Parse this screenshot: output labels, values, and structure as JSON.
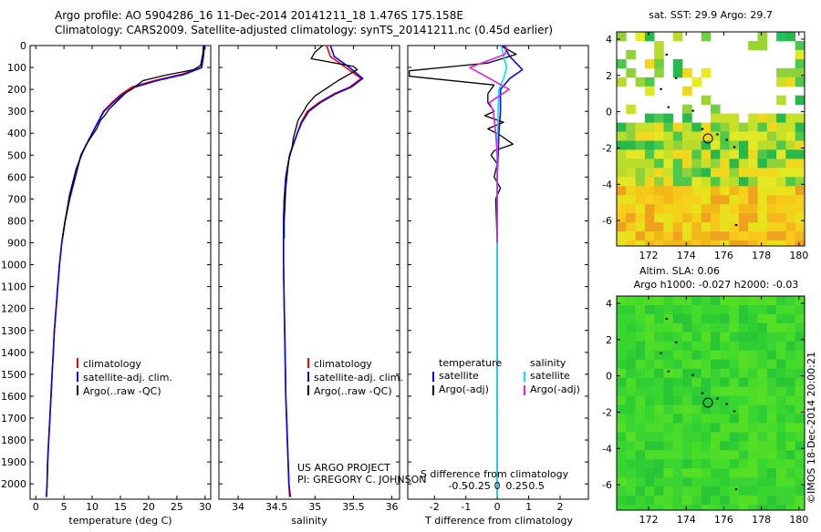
{
  "header": {
    "line1": "Argo profile: AO 5904286_16 11-Dec-2014 20141211_18 1.476S 175.158E",
    "line2": "Climatology: CARS2009. Satellite-adjusted climatology: synTS_20141211.nc (0.45d earlier)"
  },
  "colors": {
    "clim": "#ff0000",
    "sat": "#0000ff",
    "argo": "#000000",
    "sat_s": "#00e5e5",
    "argo_s": "#e020e0"
  },
  "chart_data": [
    {
      "type": "line",
      "id": "temperature",
      "xlabel": "temperature (deg C)",
      "xlim": [
        -1,
        31
      ],
      "xticks": [
        0,
        5,
        10,
        15,
        20,
        25,
        30
      ],
      "ylim": [
        0,
        2070
      ],
      "yticks": [
        0,
        100,
        200,
        300,
        400,
        500,
        600,
        700,
        800,
        900,
        1000,
        1100,
        1200,
        1300,
        1400,
        1500,
        1600,
        1700,
        1800,
        1900,
        2000
      ],
      "legend": [
        "climatology",
        "satellite-adj. clim.",
        "Argo(..raw -QC)"
      ],
      "series": [
        {
          "name": "climatology",
          "color": "clim",
          "points": [
            [
              29.8,
              0
            ],
            [
              29.6,
              50
            ],
            [
              29.3,
              100
            ],
            [
              26,
              130
            ],
            [
              21,
              160
            ],
            [
              17,
              190
            ],
            [
              15,
              225
            ],
            [
              13.5,
              260
            ],
            [
              12,
              300
            ],
            [
              11,
              350
            ],
            [
              10,
              400
            ],
            [
              9,
              450
            ],
            [
              8,
              500
            ],
            [
              7,
              600
            ],
            [
              6,
              700
            ],
            [
              5.2,
              800
            ],
            [
              4.6,
              900
            ],
            [
              4.2,
              1000
            ],
            [
              3.9,
              1100
            ],
            [
              3.6,
              1200
            ],
            [
              3.3,
              1300
            ],
            [
              3.1,
              1400
            ],
            [
              2.9,
              1500
            ],
            [
              2.7,
              1600
            ],
            [
              2.5,
              1700
            ],
            [
              2.3,
              1800
            ],
            [
              2.1,
              1900
            ],
            [
              2,
              2000
            ],
            [
              1.9,
              2060
            ]
          ]
        },
        {
          "name": "satellite-adj. clim.",
          "color": "sat",
          "points": [
            [
              29.9,
              0
            ],
            [
              29.7,
              50
            ],
            [
              29.4,
              100
            ],
            [
              26.5,
              130
            ],
            [
              21.5,
              160
            ],
            [
              17.5,
              190
            ],
            [
              15.3,
              225
            ],
            [
              13.7,
              260
            ],
            [
              12.1,
              300
            ],
            [
              11,
              350
            ],
            [
              10,
              400
            ],
            [
              9,
              450
            ],
            [
              8,
              500
            ],
            [
              7,
              600
            ],
            [
              6,
              700
            ],
            [
              5.2,
              800
            ],
            [
              4.6,
              900
            ],
            [
              4.2,
              1000
            ],
            [
              3.9,
              1100
            ],
            [
              3.6,
              1200
            ],
            [
              3.3,
              1300
            ],
            [
              3.1,
              1400
            ],
            [
              2.9,
              1500
            ],
            [
              2.7,
              1600
            ],
            [
              2.5,
              1700
            ],
            [
              2.3,
              1800
            ],
            [
              2.1,
              1900
            ],
            [
              2,
              2000
            ],
            [
              1.9,
              2060
            ]
          ]
        },
        {
          "name": "Argo(..raw -QC)",
          "color": "argo",
          "points": [
            [
              29.7,
              0
            ],
            [
              29.6,
              40
            ],
            [
              29.2,
              90
            ],
            [
              28,
              110
            ],
            [
              23,
              135
            ],
            [
              19,
              160
            ],
            [
              18,
              180
            ],
            [
              17,
              200
            ],
            [
              16,
              215
            ],
            [
              15,
              240
            ],
            [
              14.2,
              260
            ],
            [
              13,
              290
            ],
            [
              12.2,
              320
            ],
            [
              11.5,
              340
            ],
            [
              10.8,
              380
            ],
            [
              10,
              410
            ],
            [
              9,
              450
            ],
            [
              8.3,
              490
            ],
            [
              7.8,
              520
            ],
            [
              7.2,
              560
            ],
            [
              6.6,
              620
            ],
            [
              6,
              680
            ],
            [
              5.6,
              740
            ],
            [
              5.2,
              800
            ],
            [
              4.7,
              880
            ]
          ]
        }
      ]
    },
    {
      "type": "line",
      "id": "salinity",
      "xlabel": "salinity",
      "xlim": [
        33.75,
        36.1
      ],
      "xticks": [
        34,
        34.5,
        35,
        35.5,
        36
      ],
      "ylim": [
        0,
        2070
      ],
      "legend": [
        "climatology",
        "satellite-adj. clim.",
        "Argo(..raw -QC)"
      ],
      "series": [
        {
          "name": "climatology",
          "color": "clim",
          "points": [
            [
              35.15,
              0
            ],
            [
              35.2,
              50
            ],
            [
              35.4,
              100
            ],
            [
              35.6,
              150
            ],
            [
              35.45,
              190
            ],
            [
              35.25,
              220
            ],
            [
              35.05,
              260
            ],
            [
              34.9,
              300
            ],
            [
              34.82,
              350
            ],
            [
              34.77,
              400
            ],
            [
              34.72,
              450
            ],
            [
              34.67,
              500
            ],
            [
              34.62,
              600
            ],
            [
              34.6,
              700
            ],
            [
              34.59,
              800
            ],
            [
              34.59,
              1000
            ],
            [
              34.6,
              1200
            ],
            [
              34.61,
              1400
            ],
            [
              34.62,
              1600
            ],
            [
              34.64,
              1800
            ],
            [
              34.66,
              2000
            ],
            [
              34.67,
              2060
            ]
          ]
        },
        {
          "name": "satellite-adj. clim.",
          "color": "sat",
          "points": [
            [
              35.2,
              0
            ],
            [
              35.25,
              50
            ],
            [
              35.45,
              100
            ],
            [
              35.62,
              150
            ],
            [
              35.47,
              190
            ],
            [
              35.27,
              220
            ],
            [
              35.07,
              260
            ],
            [
              34.92,
              300
            ],
            [
              34.83,
              350
            ],
            [
              34.77,
              400
            ],
            [
              34.72,
              450
            ],
            [
              34.67,
              500
            ],
            [
              34.62,
              600
            ],
            [
              34.6,
              700
            ],
            [
              34.59,
              800
            ],
            [
              34.59,
              1000
            ],
            [
              34.6,
              1200
            ],
            [
              34.61,
              1400
            ],
            [
              34.62,
              1600
            ],
            [
              34.64,
              1800
            ],
            [
              34.66,
              2000
            ],
            [
              34.68,
              2060
            ]
          ]
        },
        {
          "name": "Argo(..raw -QC)",
          "color": "argo",
          "points": [
            [
              35.1,
              0
            ],
            [
              35.0,
              30
            ],
            [
              34.95,
              60
            ],
            [
              35.5,
              95
            ],
            [
              35.55,
              110
            ],
            [
              35.45,
              130
            ],
            [
              35.3,
              160
            ],
            [
              35.15,
              195
            ],
            [
              35.0,
              230
            ],
            [
              34.9,
              270
            ],
            [
              34.85,
              300
            ],
            [
              34.78,
              340
            ],
            [
              34.75,
              380
            ],
            [
              34.72,
              420
            ],
            [
              34.7,
              470
            ],
            [
              34.66,
              520
            ],
            [
              34.64,
              580
            ],
            [
              34.62,
              650
            ],
            [
              34.61,
              720
            ],
            [
              34.6,
              800
            ],
            [
              34.6,
              880
            ]
          ]
        }
      ]
    },
    {
      "type": "line",
      "id": "difference",
      "xlabel": "T difference from climatology",
      "x2label": "S difference from climatology",
      "xlim": [
        -2.85,
        2.9
      ],
      "xticks": [
        -2,
        -1,
        0,
        1,
        2
      ],
      "x2ticks": [
        -0.5,
        -0.25,
        0,
        0.25,
        0.5
      ],
      "x2tick_labels": [
        "-0.5",
        "-0.25",
        "0",
        "0.25",
        "0.5"
      ],
      "s_scale": 2.5,
      "ylim": [
        0,
        2070
      ],
      "legend_left_title": "temperature",
      "legend_right_title": "salinity",
      "legend_left": [
        "satellite",
        "Argo(-adj)"
      ],
      "legend_right": [
        "satellite",
        "Argo(-adj)"
      ],
      "series": [
        {
          "name": "T satellite",
          "color": "sat",
          "points": [
            [
              0.2,
              0
            ],
            [
              0.4,
              50
            ],
            [
              0.8,
              110
            ],
            [
              0.4,
              150
            ],
            [
              0.1,
              200
            ],
            [
              0.1,
              300
            ],
            [
              0.05,
              400
            ],
            [
              0,
              600
            ],
            [
              0,
              2060
            ]
          ]
        },
        {
          "name": "T Argo(-adj)",
          "color": "argo",
          "points": [
            [
              0.1,
              0
            ],
            [
              0.6,
              40
            ],
            [
              -0.3,
              80
            ],
            [
              -2.8,
              115
            ],
            [
              -2.8,
              140
            ],
            [
              -0.1,
              180
            ],
            [
              -0.3,
              220
            ],
            [
              -0.3,
              260
            ],
            [
              -0.1,
              300
            ],
            [
              -0.4,
              320
            ],
            [
              0.2,
              350
            ],
            [
              -0.3,
              380
            ],
            [
              0.1,
              410
            ],
            [
              0.5,
              450
            ],
            [
              -0.1,
              480
            ],
            [
              -0.2,
              500
            ],
            [
              0,
              540
            ],
            [
              -0.1,
              600
            ],
            [
              0.1,
              650
            ],
            [
              -0.05,
              700
            ],
            [
              0,
              900
            ]
          ]
        },
        {
          "name": "S satellite",
          "color": "sat_s",
          "points": [
            [
              0.05,
              0
            ],
            [
              0.08,
              50
            ],
            [
              0.12,
              100
            ],
            [
              0.08,
              150
            ],
            [
              0.02,
              200
            ],
            [
              0.01,
              300
            ],
            [
              0,
              500
            ],
            [
              0,
              2060
            ]
          ]
        },
        {
          "name": "S Argo(-adj)",
          "color": "argo_s",
          "points": [
            [
              0.12,
              0
            ],
            [
              0.1,
              40
            ],
            [
              -0.35,
              100
            ],
            [
              -0.1,
              150
            ],
            [
              0.15,
              200
            ],
            [
              -0.1,
              260
            ],
            [
              -0.05,
              300
            ],
            [
              -0.02,
              400
            ],
            [
              0,
              500
            ],
            [
              0,
              900
            ]
          ]
        }
      ]
    },
    {
      "type": "heatmap",
      "id": "sst_map",
      "title": "sat. SST: 29.9 Argo: 29.7",
      "xlim": [
        170.3,
        180.3
      ],
      "xticks": [
        172,
        174,
        176,
        178,
        180
      ],
      "ylim": [
        -7.4,
        4.4
      ],
      "yticks": [
        4,
        2,
        0,
        -2,
        -4,
        -6
      ],
      "float_position": [
        175.158,
        -1.476
      ]
    },
    {
      "type": "heatmap",
      "id": "sla_map",
      "title": "Altim. SLA: 0.06",
      "subtitle": "Argo h1000: -0.027 h2000: -0.03",
      "xlim": [
        170.3,
        180.3
      ],
      "xticks": [
        172,
        174,
        176,
        178,
        180
      ],
      "ylim": [
        -7.4,
        4.4
      ],
      "yticks": [
        4,
        2,
        0,
        -2,
        -4,
        -6
      ],
      "float_position": [
        175.158,
        -1.476
      ]
    }
  ],
  "credits": {
    "project": "US ARGO PROJECT",
    "pi": "PI: GREGORY C. JOHNSON",
    "stamp": "©IMOS 18-Dec-2014 20:00:21"
  }
}
